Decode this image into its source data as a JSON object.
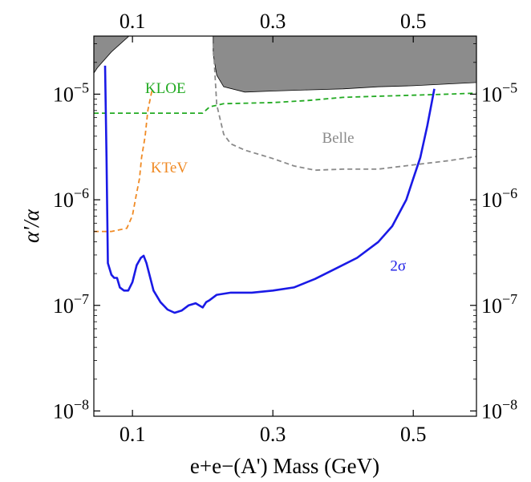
{
  "chart_data": {
    "type": "line",
    "title": "",
    "xlabel": "e+e−(A') Mass (GeV)",
    "ylabel": "α'/α",
    "xlim": [
      0.045,
      0.59
    ],
    "ylim_log10": [
      -8.05,
      -4.45
    ],
    "yscale": "log",
    "x_ticks_bottom": [
      {
        "value": 0.1,
        "label": "0.1"
      },
      {
        "value": 0.3,
        "label": "0.3"
      },
      {
        "value": 0.5,
        "label": "0.5"
      }
    ],
    "x_ticks_top": [
      {
        "value": 0.1,
        "label": "0.1"
      },
      {
        "value": 0.3,
        "label": "0.3"
      },
      {
        "value": 0.5,
        "label": "0.5"
      }
    ],
    "y_ticks": [
      {
        "exp": -5,
        "label_base": "10",
        "label_exp": "−5"
      },
      {
        "exp": -6,
        "label_base": "10",
        "label_exp": "−6"
      },
      {
        "exp": -7,
        "label_base": "10",
        "label_exp": "−7"
      },
      {
        "exp": -8,
        "label_base": "10",
        "label_exp": "−8"
      }
    ],
    "grid": false,
    "excluded_regions": [
      {
        "name": "",
        "color": "#8c8c8c",
        "points": [
          [
            0.045,
            -4.45
          ],
          [
            0.095,
            -4.45
          ],
          [
            0.07,
            -4.6
          ],
          [
            0.05,
            -4.75
          ],
          [
            0.045,
            -4.8
          ]
        ]
      },
      {
        "name": "",
        "color": "#8c8c8c",
        "points": [
          [
            0.215,
            -4.45
          ],
          [
            0.59,
            -4.45
          ],
          [
            0.59,
            -4.89
          ],
          [
            0.5,
            -4.92
          ],
          [
            0.45,
            -4.93
          ],
          [
            0.4,
            -4.95
          ],
          [
            0.35,
            -4.96
          ],
          [
            0.3,
            -4.97
          ],
          [
            0.26,
            -4.98
          ],
          [
            0.23,
            -4.93
          ],
          [
            0.22,
            -4.82
          ],
          [
            0.215,
            -4.62
          ]
        ]
      }
    ],
    "series": [
      {
        "name": "KLOE",
        "color": "#22aa22",
        "style": "dashed",
        "points": [
          [
            0.045,
            -5.18
          ],
          [
            0.1,
            -5.18
          ],
          [
            0.15,
            -5.18
          ],
          [
            0.2,
            -5.18
          ],
          [
            0.21,
            -5.12
          ],
          [
            0.23,
            -5.09
          ],
          [
            0.3,
            -5.08
          ],
          [
            0.35,
            -5.06
          ],
          [
            0.4,
            -5.03
          ],
          [
            0.45,
            -5.02
          ],
          [
            0.5,
            -5.01
          ],
          [
            0.55,
            -5.0
          ],
          [
            0.59,
            -4.99
          ]
        ]
      },
      {
        "name": "KTeV",
        "color": "#f08a24",
        "style": "dashed",
        "points": [
          [
            0.045,
            -6.3
          ],
          [
            0.07,
            -6.3
          ],
          [
            0.092,
            -6.27
          ],
          [
            0.1,
            -6.15
          ],
          [
            0.105,
            -5.97
          ],
          [
            0.11,
            -5.8
          ],
          [
            0.113,
            -5.6
          ],
          [
            0.118,
            -5.4
          ],
          [
            0.122,
            -5.15
          ],
          [
            0.128,
            -4.96
          ]
        ]
      },
      {
        "name": "Belle",
        "color": "#8a8a8a",
        "style": "dashed",
        "points": [
          [
            0.215,
            -4.52
          ],
          [
            0.22,
            -5.1
          ],
          [
            0.23,
            -5.38
          ],
          [
            0.24,
            -5.47
          ],
          [
            0.26,
            -5.53
          ],
          [
            0.3,
            -5.61
          ],
          [
            0.33,
            -5.68
          ],
          [
            0.36,
            -5.72
          ],
          [
            0.4,
            -5.71
          ],
          [
            0.45,
            -5.71
          ],
          [
            0.5,
            -5.67
          ],
          [
            0.55,
            -5.63
          ],
          [
            0.59,
            -5.59
          ]
        ]
      },
      {
        "name": "2σ",
        "color": "#1a1ae6",
        "style": "solid",
        "points": [
          [
            0.061,
            -4.73
          ],
          [
            0.063,
            -5.6
          ],
          [
            0.065,
            -6.6
          ],
          [
            0.07,
            -6.71
          ],
          [
            0.074,
            -6.74
          ],
          [
            0.078,
            -6.74
          ],
          [
            0.082,
            -6.83
          ],
          [
            0.088,
            -6.86
          ],
          [
            0.094,
            -6.86
          ],
          [
            0.1,
            -6.78
          ],
          [
            0.106,
            -6.62
          ],
          [
            0.112,
            -6.55
          ],
          [
            0.116,
            -6.53
          ],
          [
            0.12,
            -6.6
          ],
          [
            0.125,
            -6.73
          ],
          [
            0.13,
            -6.86
          ],
          [
            0.14,
            -6.97
          ],
          [
            0.15,
            -7.04
          ],
          [
            0.16,
            -7.07
          ],
          [
            0.17,
            -7.05
          ],
          [
            0.18,
            -7.0
          ],
          [
            0.19,
            -6.98
          ],
          [
            0.2,
            -7.02
          ],
          [
            0.205,
            -6.97
          ],
          [
            0.21,
            -6.95
          ],
          [
            0.22,
            -6.9
          ],
          [
            0.24,
            -6.88
          ],
          [
            0.27,
            -6.88
          ],
          [
            0.3,
            -6.86
          ],
          [
            0.33,
            -6.83
          ],
          [
            0.36,
            -6.75
          ],
          [
            0.39,
            -6.65
          ],
          [
            0.42,
            -6.55
          ],
          [
            0.45,
            -6.4
          ],
          [
            0.47,
            -6.25
          ],
          [
            0.49,
            -6.0
          ],
          [
            0.5,
            -5.8
          ],
          [
            0.51,
            -5.6
          ],
          [
            0.52,
            -5.3
          ],
          [
            0.53,
            -4.95
          ]
        ]
      }
    ],
    "annotations": [
      {
        "text": "KLOE",
        "x": 0.118,
        "y_log10": -4.99,
        "color": "#22aa22"
      },
      {
        "text": "KTeV",
        "x": 0.126,
        "y_log10": -5.74,
        "color": "#f08a24"
      },
      {
        "text": "Belle",
        "x": 0.37,
        "y_log10": -5.46,
        "color": "#8a8a8a"
      },
      {
        "text": "2σ",
        "x": 0.467,
        "y_log10": -6.67,
        "color": "#1a1ae6"
      }
    ]
  }
}
